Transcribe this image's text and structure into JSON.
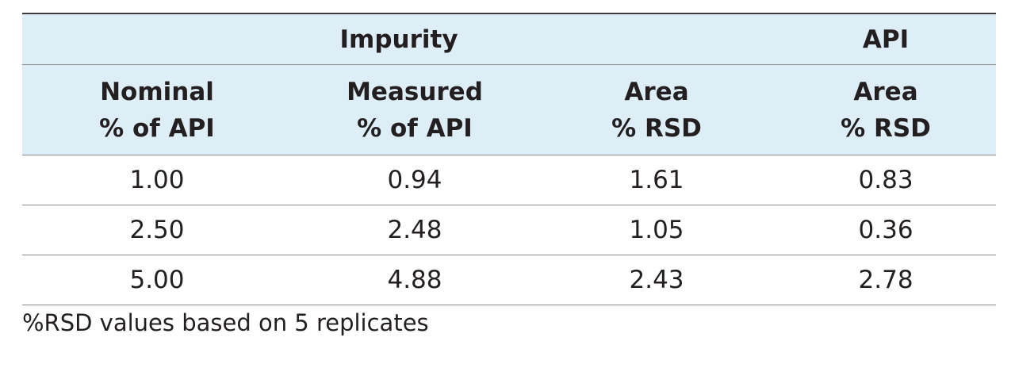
{
  "table": {
    "group_headers": {
      "impurity": "Impurity",
      "api": "API"
    },
    "column_headers": [
      {
        "line1": "Nominal",
        "line2": "% of API"
      },
      {
        "line1": "Measured",
        "line2": "% of API"
      },
      {
        "line1": "Area",
        "line2": "% RSD"
      },
      {
        "line1": "Area",
        "line2": "% RSD"
      }
    ],
    "rows": [
      [
        "1.00",
        "0.94",
        "1.61",
        "0.83"
      ],
      [
        "2.50",
        "2.48",
        "1.05",
        "0.36"
      ],
      [
        "5.00",
        "4.88",
        "2.43",
        "2.78"
      ]
    ]
  },
  "footnote": "%RSD values based on 5 replicates"
}
